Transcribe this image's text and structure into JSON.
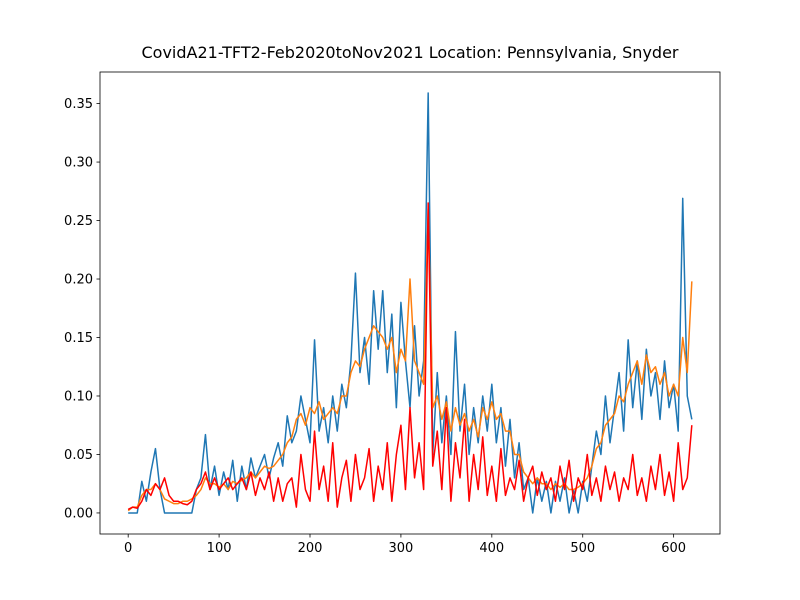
{
  "chart_data": {
    "type": "line",
    "title": "CovidA21-TFT2-Feb2020toNov2021 Location: Pennsylvania, Snyder",
    "xlim": [
      -31,
      651
    ],
    "ylim": [
      -0.018,
      0.377
    ],
    "xticks": [
      0,
      100,
      200,
      300,
      400,
      500,
      600
    ],
    "yticks": [
      {
        "value": 0,
        "label": "0.00"
      },
      0.05,
      {
        "value": 0.1,
        "label": "0.10"
      },
      0.15,
      {
        "value": 0.2,
        "label": "0.20"
      },
      0.25,
      {
        "value": 0.3,
        "label": "0.30"
      },
      0.35
    ],
    "grid": false,
    "x": [
      0,
      5,
      10,
      15,
      20,
      25,
      30,
      35,
      40,
      45,
      50,
      55,
      60,
      65,
      70,
      75,
      80,
      85,
      90,
      95,
      100,
      105,
      110,
      115,
      120,
      125,
      130,
      135,
      140,
      145,
      150,
      155,
      160,
      165,
      170,
      175,
      180,
      185,
      190,
      195,
      200,
      205,
      210,
      215,
      220,
      225,
      230,
      235,
      240,
      245,
      250,
      255,
      260,
      265,
      270,
      275,
      280,
      285,
      290,
      295,
      300,
      305,
      310,
      315,
      320,
      325,
      330,
      335,
      340,
      345,
      350,
      355,
      360,
      365,
      370,
      375,
      380,
      385,
      390,
      395,
      400,
      405,
      410,
      415,
      420,
      425,
      430,
      435,
      440,
      445,
      450,
      455,
      460,
      465,
      470,
      475,
      480,
      485,
      490,
      495,
      500,
      505,
      510,
      515,
      520,
      525,
      530,
      535,
      540,
      545,
      550,
      555,
      560,
      565,
      570,
      575,
      580,
      585,
      590,
      595,
      600,
      605,
      610,
      615,
      620
    ],
    "series": [
      {
        "color": "#1f77b4",
        "values": [
          0,
          0,
          0,
          0.027,
          0.01,
          0.035,
          0.055,
          0.02,
          0,
          0,
          0,
          0,
          0,
          0,
          0,
          0.02,
          0.03,
          0.067,
          0.02,
          0.04,
          0.015,
          0.035,
          0.02,
          0.045,
          0.01,
          0.04,
          0.02,
          0.047,
          0.03,
          0.04,
          0.05,
          0.03,
          0.047,
          0.06,
          0.04,
          0.083,
          0.06,
          0.07,
          0.1,
          0.08,
          0.06,
          0.148,
          0.07,
          0.09,
          0.06,
          0.1,
          0.07,
          0.11,
          0.09,
          0.13,
          0.205,
          0.12,
          0.15,
          0.11,
          0.19,
          0.14,
          0.19,
          0.12,
          0.17,
          0.09,
          0.18,
          0.13,
          0.09,
          0.16,
          0.1,
          0.13,
          0.359,
          0.05,
          0.12,
          0.06,
          0.1,
          0.05,
          0.155,
          0.07,
          0.11,
          0.05,
          0.09,
          0.06,
          0.1,
          0.07,
          0.11,
          0.06,
          0.09,
          0.04,
          0.08,
          0.03,
          0.06,
          0.02,
          0.03,
          0,
          0.03,
          0.01,
          0.027,
          0,
          0.027,
          0.01,
          0.03,
          0,
          0.02,
          0,
          0.027,
          0.01,
          0.04,
          0.07,
          0.05,
          0.1,
          0.06,
          0.09,
          0.12,
          0.07,
          0.148,
          0.09,
          0.13,
          0.08,
          0.14,
          0.1,
          0.12,
          0.08,
          0.13,
          0.09,
          0.11,
          0.07,
          0.269,
          0.1,
          0.08
        ]
      },
      {
        "color": "#ff7f0e",
        "values": [
          0.002,
          0.005,
          0.005,
          0.015,
          0.02,
          0.02,
          0.025,
          0.02,
          0.012,
          0.01,
          0.008,
          0.008,
          0.01,
          0.01,
          0.012,
          0.015,
          0.02,
          0.03,
          0.025,
          0.025,
          0.022,
          0.025,
          0.02,
          0.027,
          0.025,
          0.028,
          0.03,
          0.035,
          0.03,
          0.035,
          0.04,
          0.038,
          0.04,
          0.045,
          0.05,
          0.06,
          0.065,
          0.08,
          0.085,
          0.075,
          0.09,
          0.085,
          0.095,
          0.08,
          0.085,
          0.09,
          0.085,
          0.1,
          0.1,
          0.12,
          0.13,
          0.125,
          0.14,
          0.15,
          0.16,
          0.155,
          0.15,
          0.14,
          0.15,
          0.12,
          0.14,
          0.13,
          0.2,
          0.13,
          0.12,
          0.11,
          0.26,
          0.09,
          0.1,
          0.08,
          0.095,
          0.07,
          0.09,
          0.075,
          0.085,
          0.07,
          0.08,
          0.065,
          0.09,
          0.08,
          0.095,
          0.08,
          0.085,
          0.07,
          0.07,
          0.05,
          0.05,
          0.035,
          0.03,
          0.025,
          0.03,
          0.025,
          0.025,
          0.02,
          0.025,
          0.022,
          0.025,
          0.02,
          0.02,
          0.022,
          0.025,
          0.03,
          0.04,
          0.055,
          0.06,
          0.075,
          0.08,
          0.085,
          0.1,
          0.095,
          0.11,
          0.12,
          0.13,
          0.11,
          0.135,
          0.12,
          0.125,
          0.11,
          0.12,
          0.1,
          0.11,
          0.1,
          0.15,
          0.12,
          0.198
        ]
      },
      {
        "color": "#ff0000",
        "values": [
          0.003,
          0.005,
          0.004,
          0.01,
          0.02,
          0.015,
          0.025,
          0.02,
          0.03,
          0.015,
          0.01,
          0.01,
          0.008,
          0.007,
          0.01,
          0.02,
          0.025,
          0.035,
          0.02,
          0.03,
          0.02,
          0.025,
          0.03,
          0.02,
          0.025,
          0.03,
          0.02,
          0.035,
          0.015,
          0.03,
          0.02,
          0.035,
          0.01,
          0.03,
          0.01,
          0.025,
          0.03,
          0.005,
          0.05,
          0.02,
          0.01,
          0.07,
          0.02,
          0.04,
          0.01,
          0.06,
          0.005,
          0.03,
          0.045,
          0.01,
          0.05,
          0.02,
          0.03,
          0.055,
          0.01,
          0.04,
          0.02,
          0.06,
          0.01,
          0.05,
          0.075,
          0.02,
          0.09,
          0.03,
          0.06,
          0.02,
          0.265,
          0.04,
          0.07,
          0.02,
          0.09,
          0.01,
          0.06,
          0.03,
          0.08,
          0.01,
          0.05,
          0.02,
          0.065,
          0.015,
          0.04,
          0.01,
          0.055,
          0.015,
          0.03,
          0.02,
          0.045,
          0.01,
          0.03,
          0.04,
          0.015,
          0.035,
          0.02,
          0.03,
          0.01,
          0.04,
          0.02,
          0.045,
          0.01,
          0.03,
          0.02,
          0.05,
          0.015,
          0.03,
          0.01,
          0.04,
          0.02,
          0.035,
          0.01,
          0.03,
          0.02,
          0.05,
          0.015,
          0.03,
          0.01,
          0.04,
          0.02,
          0.05,
          0.015,
          0.035,
          0.01,
          0.06,
          0.02,
          0.03,
          0.075
        ]
      }
    ]
  }
}
